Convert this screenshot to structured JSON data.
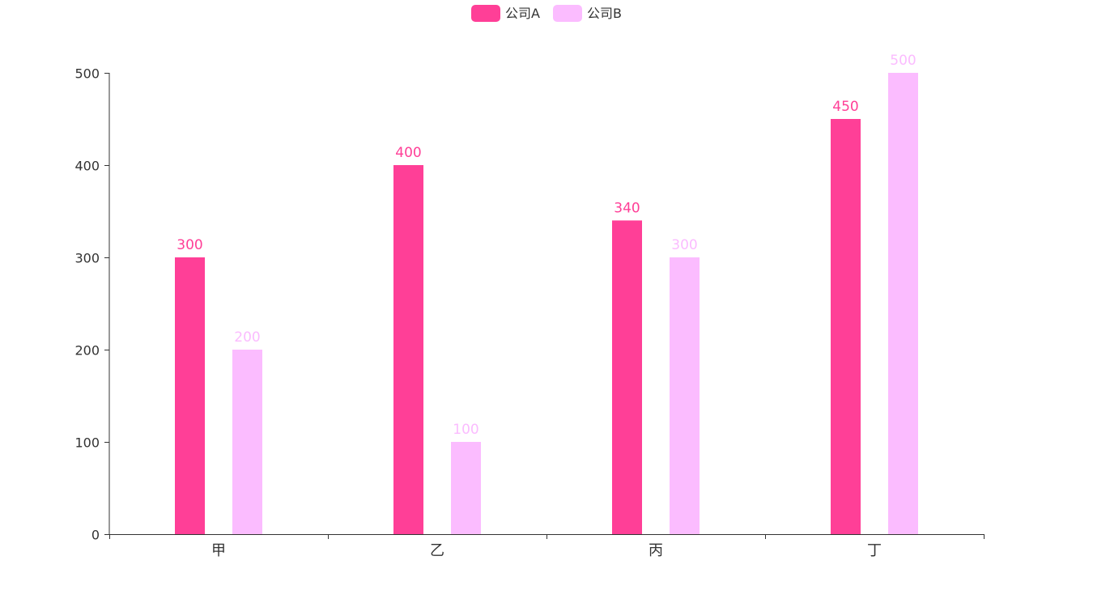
{
  "legend": {
    "items": [
      {
        "label": "公司A",
        "color": "#ff3f97"
      },
      {
        "label": "公司B",
        "color": "#fbbcff"
      }
    ]
  },
  "chart_data": {
    "type": "bar",
    "categories": [
      "甲",
      "乙",
      "丙",
      "丁"
    ],
    "series": [
      {
        "name": "公司A",
        "values": [
          300,
          400,
          340,
          450
        ],
        "color": "#ff3f97"
      },
      {
        "name": "公司B",
        "values": [
          200,
          100,
          300,
          500
        ],
        "color": "#fbbcff"
      }
    ],
    "ylim": [
      0,
      500
    ],
    "yticks": [
      0,
      100,
      200,
      300,
      400,
      500
    ],
    "show_data_labels": true,
    "grid": false,
    "legend_position": "top-center",
    "axis_color": "#333333",
    "label_color": "#333333"
  }
}
